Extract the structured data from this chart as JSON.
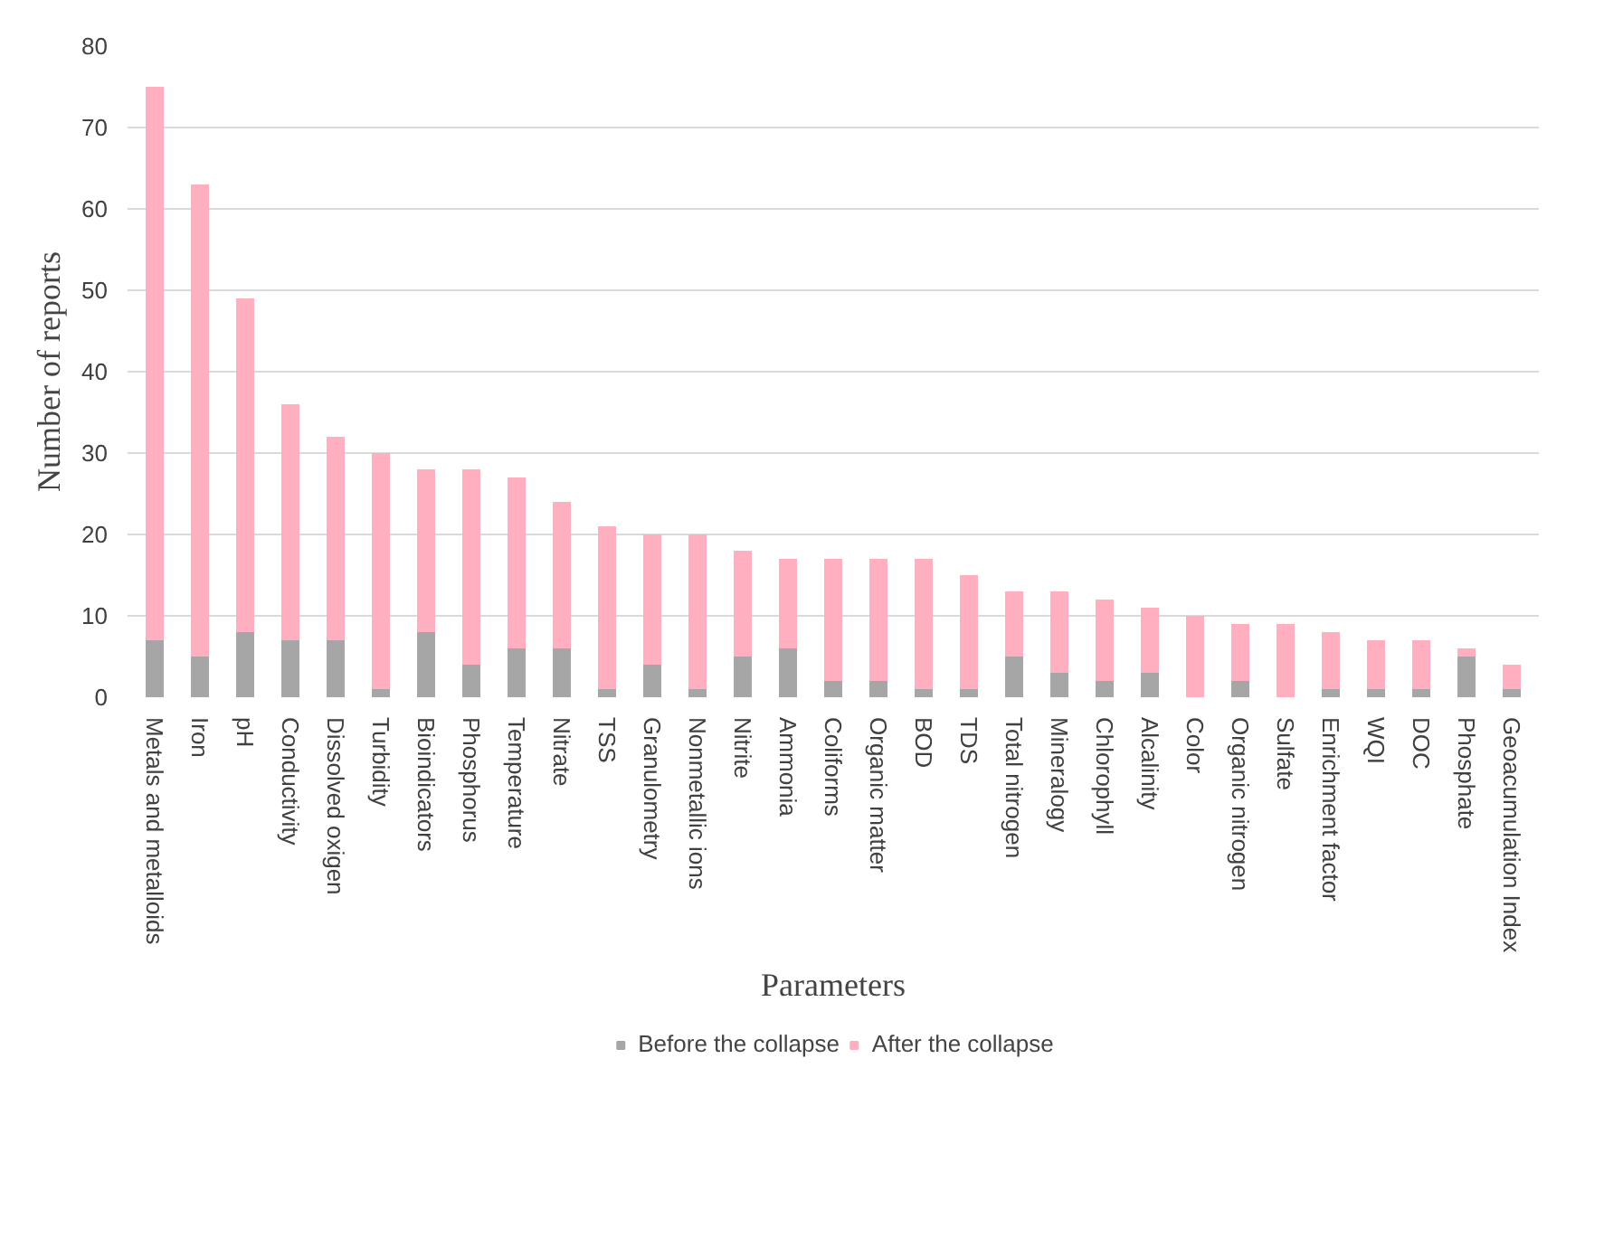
{
  "chart_data": {
    "type": "bar",
    "stacked": true,
    "xlabel": "Parameters",
    "ylabel": "Number of reports",
    "categories": [
      "Metals and metalloids",
      "Iron",
      "pH",
      "Conductivity",
      "Dissolved oxigen",
      "Turbidity",
      "Bioindicators",
      "Phosphorus",
      "Temperature",
      "Nitrate",
      "TSS",
      "Granulometry",
      "Nonmetallic ions",
      "Nitrite",
      "Ammonia",
      "Coliforms",
      "Organic matter",
      "BOD",
      "TDS",
      "Total nitrogen",
      "Mineralogy",
      "Chlorophyll",
      "Alcalinity",
      "Color",
      "Organic nitrogen",
      "Sulfate",
      "Enrichment factor",
      "WQI",
      "DOC",
      "Phosphate",
      "Geoacumulation Index"
    ],
    "series": [
      {
        "name": "Before the collapse",
        "color": "#a6a6a6",
        "values": [
          7,
          5,
          8,
          7,
          7,
          1,
          8,
          4,
          6,
          6,
          1,
          4,
          1,
          5,
          6,
          2,
          2,
          1,
          1,
          5,
          3,
          2,
          3,
          0,
          2,
          0,
          1,
          1,
          1,
          5,
          1
        ]
      },
      {
        "name": "After the collapse",
        "color": "#ffafbf",
        "values": [
          68,
          58,
          41,
          29,
          25,
          29,
          20,
          24,
          21,
          18,
          20,
          16,
          19,
          13,
          11,
          15,
          15,
          16,
          14,
          8,
          10,
          10,
          8,
          10,
          7,
          9,
          7,
          6,
          6,
          1,
          3
        ]
      }
    ],
    "ylim": [
      0,
      80
    ],
    "yticks": [
      0,
      10,
      20,
      30,
      40,
      50,
      60,
      70,
      80
    ],
    "grid": "y",
    "legend": "bottom"
  }
}
